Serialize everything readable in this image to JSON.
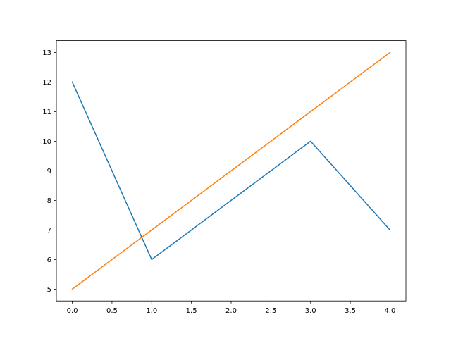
{
  "chart_data": {
    "type": "line",
    "title": "",
    "xlabel": "",
    "ylabel": "",
    "xlim": [
      -0.2,
      4.2
    ],
    "ylim": [
      4.6,
      13.4
    ],
    "xticks": [
      "0.0",
      "0.5",
      "1.0",
      "1.5",
      "2.0",
      "2.5",
      "3.0",
      "3.5",
      "4.0"
    ],
    "yticks": [
      "5",
      "6",
      "7",
      "8",
      "9",
      "10",
      "11",
      "12",
      "13"
    ],
    "grid": false,
    "x": [
      0,
      1,
      2,
      3,
      4
    ],
    "series": [
      {
        "values": [
          12,
          6,
          8,
          10,
          7
        ],
        "color": "#1f77b4"
      },
      {
        "values": [
          5,
          7,
          9,
          11,
          13
        ],
        "color": "#ff7f0e"
      }
    ]
  }
}
